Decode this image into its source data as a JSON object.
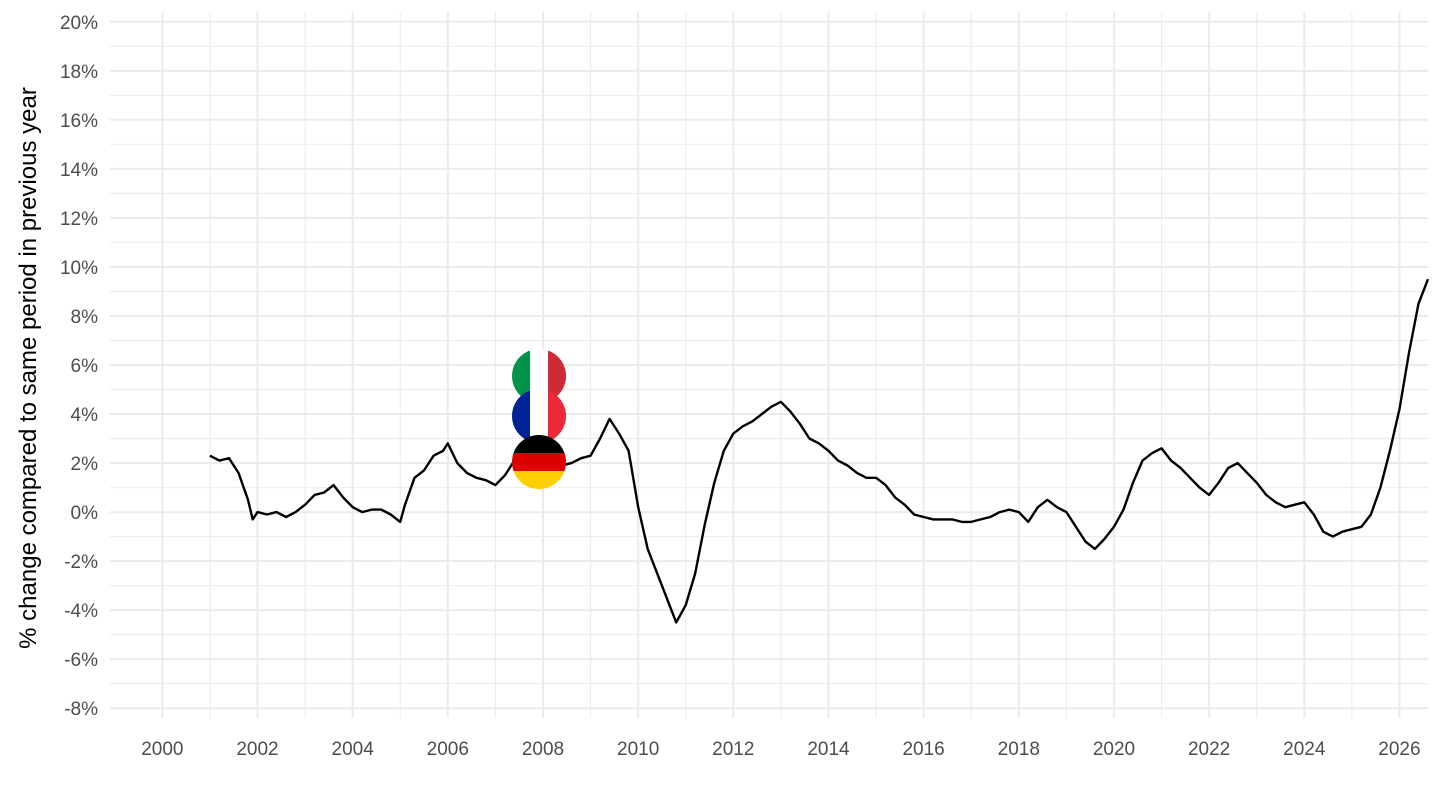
{
  "chart_data": {
    "type": "line",
    "title": "",
    "xlabel": "",
    "ylabel": "% change compared to same period in previous year",
    "xlim": [
      1998.9,
      2026.6
    ],
    "ylim": [
      -8.4,
      20.4
    ],
    "x_ticks": [
      2000,
      2002,
      2004,
      2006,
      2008,
      2010,
      2012,
      2014,
      2016,
      2018,
      2020,
      2022,
      2024,
      2026
    ],
    "x_tick_labels": [
      "2000",
      "2002",
      "2004",
      "2006",
      "2008",
      "2010",
      "2012",
      "2014",
      "2016",
      "2018",
      "2020",
      "2022",
      "2024",
      "2026"
    ],
    "y_ticks": [
      -8,
      -6,
      -4,
      -2,
      0,
      2,
      4,
      6,
      8,
      10,
      12,
      14,
      16,
      18,
      20
    ],
    "y_tick_labels": [
      "-8%",
      "-6%",
      "-4%",
      "-2%",
      "0%",
      "2%",
      "4%",
      "6%",
      "8%",
      "10%",
      "12%",
      "14%",
      "16%",
      "18%",
      "20%"
    ],
    "grid": true,
    "legend": "flag icons at the lines near 2008",
    "series": [
      {
        "color": "#000000",
        "flag": "germany-flag",
        "points": [
          [
            2001.0,
            2.3
          ],
          [
            2001.2,
            2.1
          ],
          [
            2001.4,
            2.2
          ],
          [
            2001.6,
            1.6
          ],
          [
            2001.8,
            0.5
          ],
          [
            2001.9,
            -0.3
          ],
          [
            2002.0,
            0.0
          ],
          [
            2002.2,
            -0.1
          ],
          [
            2002.4,
            0.0
          ],
          [
            2002.6,
            -0.2
          ],
          [
            2002.8,
            0.0
          ],
          [
            2003.0,
            0.3
          ],
          [
            2003.2,
            0.7
          ],
          [
            2003.4,
            0.8
          ],
          [
            2003.6,
            1.1
          ],
          [
            2003.8,
            0.6
          ],
          [
            2004.0,
            0.2
          ],
          [
            2004.2,
            0.0
          ],
          [
            2004.4,
            0.1
          ],
          [
            2004.6,
            0.1
          ],
          [
            2004.8,
            -0.1
          ],
          [
            2005.0,
            -0.4
          ],
          [
            2005.1,
            0.3
          ],
          [
            2005.3,
            1.4
          ],
          [
            2005.5,
            1.7
          ],
          [
            2005.7,
            2.3
          ],
          [
            2005.9,
            2.5
          ],
          [
            2006.0,
            2.8
          ],
          [
            2006.2,
            2.0
          ],
          [
            2006.4,
            1.6
          ],
          [
            2006.6,
            1.4
          ],
          [
            2006.8,
            1.3
          ],
          [
            2007.0,
            1.1
          ],
          [
            2007.2,
            1.5
          ],
          [
            2007.4,
            2.1
          ],
          [
            2007.6,
            2.3
          ],
          [
            2007.8,
            2.2
          ],
          [
            2008.0,
            2.6
          ],
          [
            2008.2,
            2.0
          ],
          [
            2008.4,
            1.9
          ],
          [
            2008.6,
            2.0
          ],
          [
            2008.8,
            2.2
          ],
          [
            2009.0,
            2.3
          ],
          [
            2009.2,
            3.0
          ],
          [
            2009.4,
            3.8
          ],
          [
            2009.6,
            3.2
          ],
          [
            2009.8,
            2.5
          ],
          [
            2010.0,
            0.2
          ],
          [
            2010.2,
            -1.5
          ],
          [
            2010.4,
            -2.5
          ],
          [
            2010.6,
            -3.5
          ],
          [
            2010.8,
            -4.5
          ],
          [
            2011.0,
            -3.8
          ],
          [
            2011.2,
            -2.5
          ],
          [
            2011.4,
            -0.5
          ],
          [
            2011.6,
            1.2
          ],
          [
            2011.8,
            2.5
          ],
          [
            2012.0,
            3.2
          ],
          [
            2012.2,
            3.5
          ],
          [
            2012.4,
            3.7
          ],
          [
            2012.6,
            4.0
          ],
          [
            2012.8,
            4.3
          ],
          [
            2013.0,
            4.5
          ],
          [
            2013.2,
            4.1
          ],
          [
            2013.4,
            3.6
          ],
          [
            2013.6,
            3.0
          ],
          [
            2013.8,
            2.8
          ],
          [
            2014.0,
            2.5
          ],
          [
            2014.2,
            2.1
          ],
          [
            2014.4,
            1.9
          ],
          [
            2014.6,
            1.6
          ],
          [
            2014.8,
            1.4
          ],
          [
            2015.0,
            1.4
          ],
          [
            2015.2,
            1.1
          ],
          [
            2015.4,
            0.6
          ],
          [
            2015.6,
            0.3
          ],
          [
            2015.8,
            -0.1
          ],
          [
            2016.0,
            -0.2
          ],
          [
            2016.2,
            -0.3
          ],
          [
            2016.4,
            -0.3
          ],
          [
            2016.6,
            -0.3
          ],
          [
            2016.8,
            -0.4
          ],
          [
            2017.0,
            -0.4
          ],
          [
            2017.2,
            -0.3
          ],
          [
            2017.4,
            -0.2
          ],
          [
            2017.6,
            0.0
          ],
          [
            2017.8,
            0.1
          ],
          [
            2018.0,
            0.0
          ],
          [
            2018.2,
            -0.4
          ],
          [
            2018.4,
            0.2
          ],
          [
            2018.6,
            0.5
          ],
          [
            2018.8,
            0.2
          ],
          [
            2019.0,
            0.0
          ],
          [
            2019.2,
            -0.6
          ],
          [
            2019.4,
            -1.2
          ],
          [
            2019.6,
            -1.5
          ],
          [
            2019.8,
            -1.1
          ],
          [
            2020.0,
            -0.6
          ],
          [
            2020.2,
            0.1
          ],
          [
            2020.4,
            1.2
          ],
          [
            2020.6,
            2.1
          ],
          [
            2020.8,
            2.4
          ],
          [
            2021.0,
            2.6
          ],
          [
            2021.2,
            2.1
          ],
          [
            2021.4,
            1.8
          ],
          [
            2021.6,
            1.4
          ],
          [
            2021.8,
            1.0
          ],
          [
            2022.0,
            0.7
          ],
          [
            2022.2,
            1.2
          ],
          [
            2022.4,
            1.8
          ],
          [
            2022.6,
            2.0
          ],
          [
            2022.8,
            1.6
          ],
          [
            2023.0,
            1.2
          ],
          [
            2023.2,
            0.7
          ],
          [
            2023.4,
            0.4
          ],
          [
            2023.6,
            0.2
          ],
          [
            2023.8,
            0.3
          ],
          [
            2024.0,
            0.4
          ],
          [
            2024.2,
            -0.1
          ],
          [
            2024.4,
            -0.8
          ],
          [
            2024.6,
            -1.0
          ],
          [
            2024.8,
            -0.8
          ],
          [
            2025.0,
            -0.7
          ],
          [
            2025.2,
            -0.6
          ],
          [
            2025.4,
            -0.1
          ],
          [
            2025.6,
            1.0
          ],
          [
            2025.8,
            2.5
          ],
          [
            2026.0,
            4.2
          ],
          [
            2026.2,
            6.5
          ],
          [
            2026.4,
            8.5
          ],
          [
            2026.6,
            9.5
          ]
        ]
      }
    ]
  }
}
